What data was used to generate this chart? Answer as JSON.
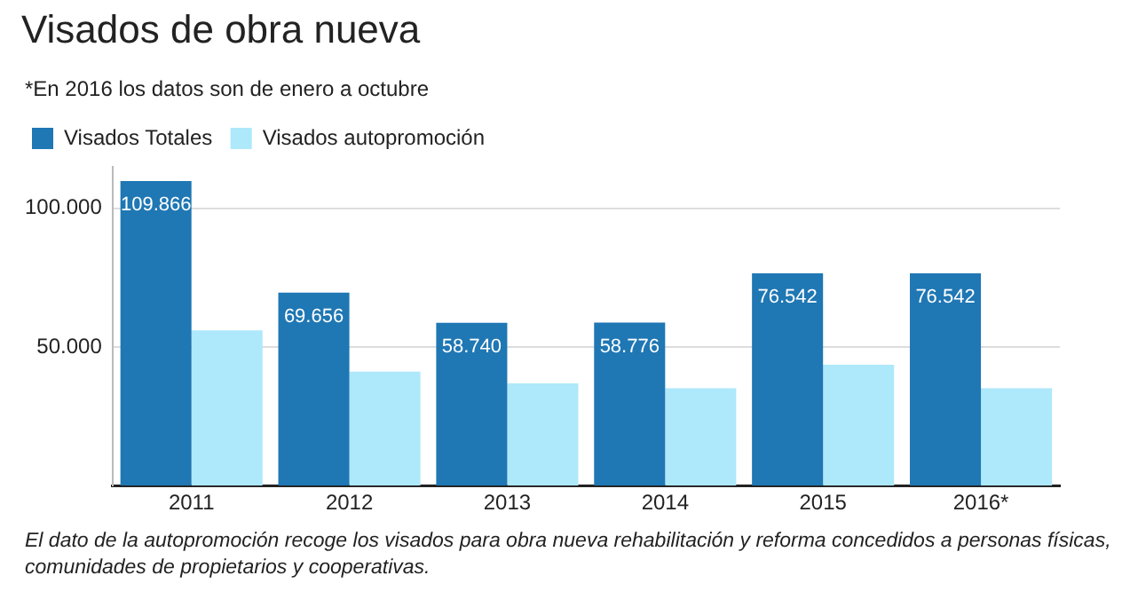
{
  "chart_data": {
    "type": "bar",
    "title": "Visados de obra nueva",
    "subtitle": "*En 2016 los datos son de enero a octubre",
    "categories": [
      "2011",
      "2012",
      "2013",
      "2014",
      "2015",
      "2016*"
    ],
    "series": [
      {
        "name": "Visados Totales",
        "color": "#1f77b4",
        "values": [
          109866,
          69656,
          58740,
          58776,
          76542,
          76542
        ],
        "value_labels": [
          "109.866",
          "69.656",
          "58.740",
          "58.776",
          "76.542",
          "76.542"
        ]
      },
      {
        "name": "Visados autopromoción",
        "color": "#aee8fb",
        "values": [
          56000,
          41100,
          36900,
          35100,
          43600,
          35100
        ]
      }
    ],
    "ylim": [
      0,
      115000
    ],
    "yticks": [
      {
        "value": 50000,
        "label": "50.000"
      },
      {
        "value": 100000,
        "label": "100.000"
      }
    ],
    "grid": "y",
    "legend": "top left",
    "annotations": [
      "El dato de la autopromoción recoge los visados para obra nueva rehabilitación y reforma concedidos a personas físicas, comunidades de propietarios y cooperativas."
    ]
  }
}
